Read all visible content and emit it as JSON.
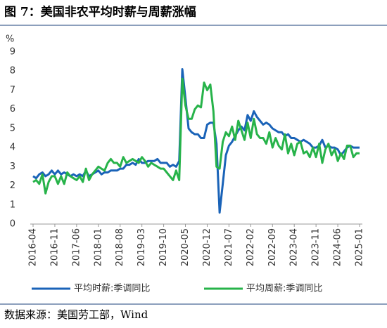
{
  "chart_data": {
    "type": "line",
    "title": "图 7：美国非农平均时薪与周薪涨幅",
    "y_label": "%",
    "source": "数据来源：美国劳工部，Wind",
    "categories": [
      "2016-04",
      null,
      null,
      null,
      null,
      null,
      null,
      "2016-11",
      null,
      null,
      null,
      null,
      null,
      null,
      "2017-06",
      null,
      null,
      null,
      null,
      null,
      null,
      "2018-01",
      null,
      null,
      null,
      null,
      null,
      null,
      "2018-08",
      null,
      null,
      null,
      null,
      null,
      null,
      "2019-03",
      null,
      null,
      null,
      null,
      null,
      null,
      "2019-10",
      null,
      null,
      null,
      null,
      null,
      null,
      "2020-05",
      null,
      null,
      null,
      null,
      null,
      null,
      "2020-12",
      null,
      null,
      null,
      null,
      null,
      null,
      "2021-07",
      null,
      null,
      null,
      null,
      null,
      null,
      "2022-02",
      null,
      null,
      null,
      null,
      null,
      null,
      "2022-09",
      null,
      null,
      null,
      null,
      null,
      null,
      "2023-04",
      null,
      null,
      null,
      null,
      null,
      null,
      "2023-11",
      null,
      null,
      null,
      null,
      null,
      null,
      "2024-06",
      null,
      null,
      null,
      null,
      null,
      null,
      "2025-01"
    ],
    "series": [
      {
        "name": "平均时薪:季调同比",
        "color": "#1a63b8",
        "values": [
          2.5,
          2.4,
          2.6,
          2.7,
          2.5,
          2.6,
          2.8,
          2.6,
          2.8,
          2.6,
          2.7,
          2.6,
          2.5,
          2.6,
          2.5,
          2.6,
          2.5,
          2.8,
          2.5,
          2.6,
          2.7,
          2.8,
          2.6,
          2.7,
          2.7,
          2.8,
          2.8,
          2.8,
          2.9,
          2.9,
          3.1,
          3.1,
          3.2,
          3.1,
          3.4,
          3.2,
          3.2,
          3.3,
          3.3,
          3.3,
          3.4,
          3.2,
          3.2,
          3.2,
          3.0,
          3.1,
          3.0,
          3.3,
          8.1,
          6.6,
          5.0,
          4.8,
          4.7,
          4.7,
          4.5,
          4.5,
          5.2,
          5.3,
          5.3,
          4.2,
          0.6,
          2.1,
          3.6,
          4.1,
          4.3,
          4.6,
          4.9,
          5.1,
          4.9,
          5.7,
          5.4,
          5.9,
          5.6,
          5.4,
          5.2,
          5.3,
          5.2,
          5.0,
          4.9,
          4.8,
          4.8,
          4.6,
          4.7,
          4.5,
          4.5,
          4.4,
          4.3,
          4.4,
          4.3,
          4.2,
          4.0,
          4.0,
          4.1,
          4.4,
          4.0,
          4.1,
          4.0,
          4.0,
          3.9,
          3.6,
          3.8,
          4.0,
          4.1,
          4.0,
          4.0,
          4.0
        ]
      },
      {
        "name": "平均周薪:季调同比",
        "color": "#27b34a",
        "values": [
          2.2,
          2.3,
          2.1,
          2.6,
          1.6,
          2.2,
          2.5,
          2.5,
          2.1,
          2.5,
          2.1,
          2.7,
          2.5,
          2.4,
          2.3,
          2.5,
          2.2,
          2.9,
          2.3,
          2.6,
          2.8,
          3.0,
          2.9,
          2.8,
          3.2,
          3.4,
          3.2,
          3.2,
          3.0,
          3.5,
          3.2,
          3.3,
          3.4,
          3.3,
          3.2,
          3.5,
          3.3,
          3.0,
          3.2,
          3.1,
          3.0,
          2.9,
          2.9,
          2.7,
          2.5,
          2.3,
          2.8,
          2.3,
          7.6,
          6.2,
          5.5,
          5.5,
          6.0,
          6.2,
          6.1,
          7.4,
          7.0,
          7.3,
          5.9,
          3.0,
          2.9,
          4.3,
          4.8,
          4.6,
          5.1,
          4.4,
          5.4,
          4.9,
          4.4,
          5.3,
          4.5,
          5.5,
          4.7,
          4.5,
          4.5,
          4.2,
          4.8,
          4.0,
          4.5,
          4.1,
          3.9,
          4.7,
          3.7,
          4.2,
          3.6,
          4.2,
          4.3,
          3.7,
          3.8,
          3.5,
          4.0,
          3.5,
          4.2,
          3.2,
          3.9,
          4.2,
          3.6,
          3.9,
          3.3,
          3.7,
          3.4,
          4.1,
          4.1,
          3.5,
          3.7,
          3.7
        ]
      }
    ],
    "ylim": [
      0,
      9
    ],
    "yticks": [
      0,
      1,
      2,
      3,
      4,
      5,
      6,
      7,
      8,
      9
    ]
  }
}
